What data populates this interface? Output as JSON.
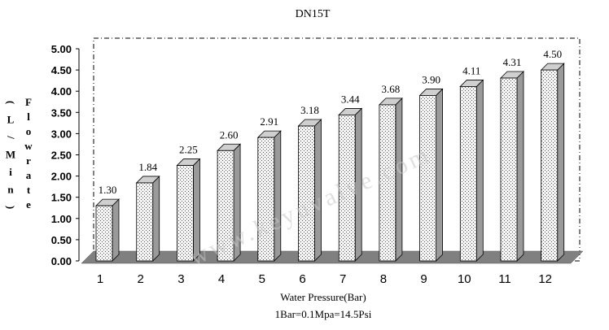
{
  "chart_data": {
    "type": "bar",
    "title": "DN15T",
    "xlabel": "Water Pressure(Bar)",
    "note": "1Bar=0.1Mpa=14.5Psi",
    "ylabel_left": "(L/Min)",
    "ylabel_right": "Flowrate",
    "watermark": "www.keyuvalve.com",
    "categories": [
      "1",
      "2",
      "3",
      "4",
      "5",
      "6",
      "7",
      "8",
      "9",
      "10",
      "11",
      "12"
    ],
    "values": [
      1.3,
      1.84,
      2.25,
      2.6,
      2.91,
      3.18,
      3.44,
      3.68,
      3.9,
      4.11,
      4.31,
      4.5
    ],
    "value_labels": [
      "1.30",
      "1.84",
      "2.25",
      "2.60",
      "2.91",
      "3.18",
      "3.44",
      "3.68",
      "3.90",
      "4.11",
      "4.31",
      "4.50"
    ],
    "y_ticks": [
      "0.00",
      "0.50",
      "1.00",
      "1.50",
      "2.00",
      "2.50",
      "3.00",
      "3.50",
      "4.00",
      "4.50",
      "5.00"
    ],
    "ylim": [
      0,
      5
    ],
    "grid": false,
    "legend": "none",
    "bar_fill": "#f4f4f4",
    "bar_dots": "#555555",
    "bar_side": "#9a9a9a",
    "bar_top": "#cfcfcf",
    "floor_color": "#808080"
  }
}
